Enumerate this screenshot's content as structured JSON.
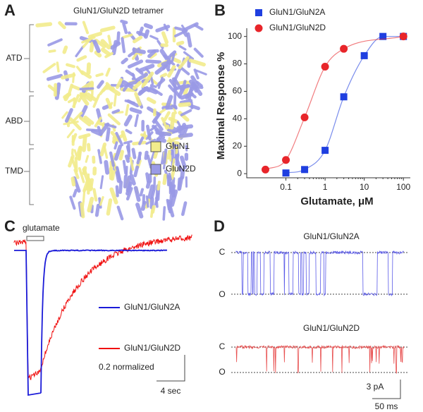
{
  "panel_a": {
    "letter": "A",
    "title": "GluN1/GluN2D tetramer",
    "domains": [
      "ATD",
      "ABD",
      "TMD"
    ],
    "legend": [
      {
        "name": "GluN1",
        "color": "#f2ec8c"
      },
      {
        "name": "GluN2D",
        "color": "#9a9ae6"
      }
    ]
  },
  "chart_data": {
    "type": "scatter",
    "letter": "B",
    "xlabel": "Glutamate, μM",
    "ylabel": "Maximal Response %",
    "xscale": "log",
    "xlim": [
      0.01,
      150
    ],
    "ylim": [
      -3,
      106
    ],
    "xticks": [
      0.1,
      1,
      10,
      100
    ],
    "yticks": [
      0,
      20,
      40,
      60,
      80,
      100
    ],
    "series": [
      {
        "name": "GluN1/GluN2A",
        "color": "#1f3fe0",
        "marker": "square",
        "x": [
          0.1,
          0.3,
          1,
          3,
          10,
          30,
          100
        ],
        "values": [
          0.5,
          3,
          17,
          56,
          86,
          100,
          100
        ]
      },
      {
        "name": "GluN1/GluN2D",
        "color": "#e8252a",
        "marker": "circle",
        "x": [
          0.03,
          0.1,
          0.3,
          1,
          3,
          100
        ],
        "values": [
          3,
          10,
          41,
          78,
          91,
          100
        ]
      }
    ]
  },
  "panel_c": {
    "letter": "C",
    "stimulus": "glutamate",
    "legend": [
      {
        "name": "GluN1/GluN2A",
        "color": "#1a1ad8"
      },
      {
        "name": "GluN1/GluN2D",
        "color": "#f01010"
      }
    ],
    "scale_y": "0.2 normalized",
    "scale_x": "4 sec"
  },
  "panel_d": {
    "letter": "D",
    "traces": [
      {
        "title": "GluN1/GluN2A",
        "color": "#5a5ae8",
        "closed": "C",
        "open": "O"
      },
      {
        "title": "GluN1/GluN2D",
        "color": "#e85050",
        "closed": "C",
        "open": "O"
      }
    ],
    "scale_y": "3 pA",
    "scale_x": "50 ms"
  }
}
